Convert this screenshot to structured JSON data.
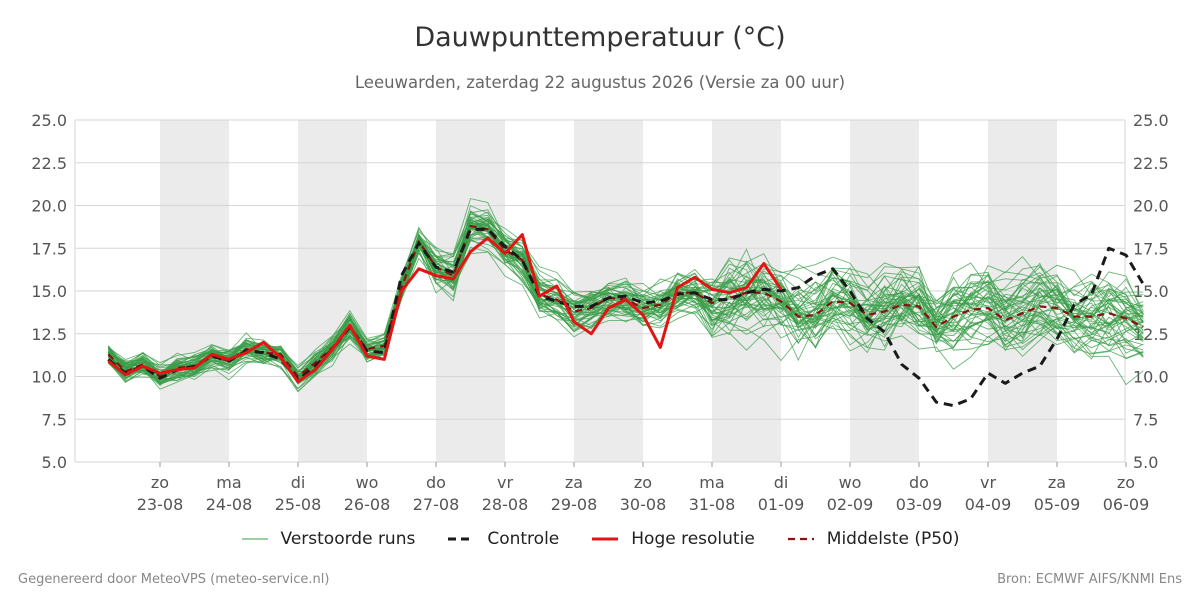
{
  "chart_data": {
    "type": "line",
    "title": "Dauwpunttemperatuur (°C)",
    "subtitle": "Leeuwarden, zaterdag 22 augustus 2026 (Versie za 00 uur)",
    "ylim": [
      5.0,
      25.0
    ],
    "yticks": [
      "25.0",
      "22.5",
      "20.0",
      "17.5",
      "15.0",
      "12.5",
      "10.0",
      "7.5",
      "5.0"
    ],
    "x_ticks": [
      {
        "day": "zo",
        "date": "23-08"
      },
      {
        "day": "ma",
        "date": "24-08"
      },
      {
        "day": "di",
        "date": "25-08"
      },
      {
        "day": "wo",
        "date": "26-08"
      },
      {
        "day": "do",
        "date": "27-08"
      },
      {
        "day": "vr",
        "date": "28-08"
      },
      {
        "day": "za",
        "date": "29-08"
      },
      {
        "day": "zo",
        "date": "30-08"
      },
      {
        "day": "ma",
        "date": "31-08"
      },
      {
        "day": "di",
        "date": "01-09"
      },
      {
        "day": "wo",
        "date": "02-09"
      },
      {
        "day": "do",
        "date": "03-09"
      },
      {
        "day": "vr",
        "date": "04-09"
      },
      {
        "day": "za",
        "date": "05-09"
      },
      {
        "day": "zo",
        "date": "06-09"
      }
    ],
    "x_start_days": -0.75,
    "x_end_days": 14.0,
    "time_step_days": 0.25,
    "grid": true,
    "legend_placement": "bottom",
    "series": [
      {
        "name": "Controle",
        "color": "#1a1a1a",
        "values": [
          11.0,
          10.2,
          10.6,
          9.9,
          10.4,
          10.6,
          11.2,
          10.9,
          11.5,
          11.4,
          11.0,
          9.8,
          10.6,
          11.6,
          12.9,
          11.5,
          11.4,
          15.9,
          17.8,
          16.4,
          16.1,
          18.6,
          18.6,
          17.6,
          16.8,
          14.7,
          14.4,
          14.1,
          14.1,
          14.6,
          14.7,
          14.3,
          14.4,
          14.8,
          14.9,
          14.5,
          14.5,
          14.9,
          15.1,
          15.0,
          15.2,
          15.9,
          16.3,
          15.0,
          13.4,
          12.6,
          10.7,
          9.9,
          8.5,
          8.3,
          8.7,
          10.2,
          9.6,
          10.2,
          10.6,
          12.2,
          14.2,
          14.8,
          17.5,
          17.1,
          15.4
        ]
      },
      {
        "name": "Hoge resolutie",
        "color": "#e31414",
        "values": [
          10.9,
          10.1,
          10.6,
          10.2,
          10.4,
          10.5,
          11.3,
          11.0,
          11.4,
          12.0,
          11.1,
          9.7,
          10.4,
          11.6,
          13.0,
          11.2,
          11.0,
          15.0,
          16.3,
          15.9,
          15.7,
          17.3,
          18.1,
          17.2,
          18.3,
          14.7,
          15.3,
          13.2,
          12.5,
          14.0,
          14.5,
          13.6,
          11.7,
          15.2,
          15.8,
          15.1,
          14.9,
          15.2,
          16.6,
          15.1
        ]
      },
      {
        "name": "Middelste (P50)",
        "color": "#8b1010",
        "values": [
          11.3,
          10.3,
          10.7,
          10.0,
          10.5,
          10.6,
          11.2,
          10.9,
          11.6,
          11.4,
          11.3,
          10.0,
          10.8,
          11.7,
          12.9,
          11.6,
          11.8,
          15.2,
          17.9,
          16.4,
          15.9,
          18.8,
          18.6,
          17.4,
          16.8,
          14.8,
          14.5,
          13.8,
          14.0,
          14.6,
          14.5,
          14.0,
          14.2,
          14.9,
          14.9,
          14.3,
          14.6,
          14.9,
          14.9,
          14.4,
          13.5,
          13.6,
          14.4,
          14.3,
          13.6,
          13.8,
          14.2,
          14.1,
          12.9,
          13.5,
          13.9,
          14.0,
          13.3,
          13.7,
          14.1,
          14.0,
          13.5,
          13.5,
          13.7,
          13.4,
          12.9
        ]
      }
    ],
    "ensemble": {
      "name": "Verstoorde runs",
      "color": "#3a9e48",
      "members": 50
    }
  },
  "legend": [
    {
      "label": "Verstoorde runs",
      "color": "#3a9e48",
      "style": "thin"
    },
    {
      "label": "Controle",
      "color": "#1a1a1a",
      "style": "dashed"
    },
    {
      "label": "Hoge resolutie",
      "color": "#e31414",
      "style": "solid"
    },
    {
      "label": "Middelste (P50)",
      "color": "#8b1010",
      "style": "dashed"
    }
  ],
  "footer": {
    "left": "Gegenereerd door MeteoVPS (meteo-service.nl)",
    "right": "Bron: ECMWF AIFS/KNMI Ens"
  }
}
